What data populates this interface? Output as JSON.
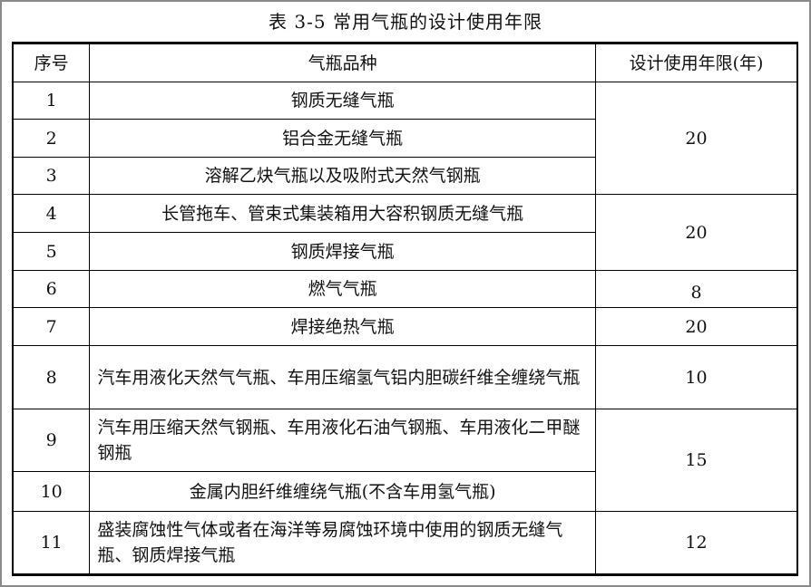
{
  "title": "表 3-5    常用气瓶的设计使用年限",
  "headers": [
    "序号",
    "气瓶品种",
    "设计使用年限(年)"
  ],
  "rows": [
    {
      "no": "1",
      "type": "钢质无缝气瓶"
    },
    {
      "no": "2",
      "type": "铝合金无缝气瓶"
    },
    {
      "no": "3",
      "type": "溶解乙炔气瓶以及吸附式天然气钢瓶"
    },
    {
      "no": "4",
      "type": "长管拖车、管束式集装箱用大容积钢质无缝气瓶"
    },
    {
      "no": "5",
      "type": "钢质焊接气瓶"
    },
    {
      "no": "6",
      "type": "燃气气瓶"
    },
    {
      "no": "7",
      "type": "焊接绝热气瓶"
    },
    {
      "no": "8",
      "type": "汽车用液化天然气气瓶、车用压缩氢气铝内胆碳纤维全缠绕气瓶"
    },
    {
      "no": "9",
      "type": "汽车用压缩天然气钢瓶、车用液化石油气钢瓶、车用液化二甲醚钢瓶"
    },
    {
      "no": "10",
      "type": "金属内胆纤维缠绕气瓶(不含车用氢气瓶)"
    },
    {
      "no": "11",
      "type": "盛装腐蚀性气体或者在海洋等易腐蚀环境中使用的钢质无缝气瓶、钢质焊接气瓶"
    }
  ],
  "years": {
    "rows_1_3": "20",
    "rows_4_5": "20",
    "row_6": "8",
    "row_7": "20",
    "row_8": "10",
    "rows_9_10": "15",
    "row_11": "12"
  }
}
